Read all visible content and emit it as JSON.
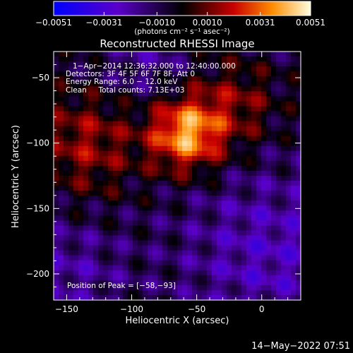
{
  "chart_data": {
    "type": "heatmap",
    "title": "Reconstructed RHESSI Image",
    "xlabel": "Heliocentric X (arcsec)",
    "ylabel": "Heliocentric Y (arcsec)",
    "xlim": [
      -160,
      30
    ],
    "ylim": [
      -220,
      -30
    ],
    "xticks": [
      -150,
      -100,
      -50,
      0
    ],
    "xtick_labels": [
      "−150",
      "−100",
      "−50",
      "0"
    ],
    "yticks": [
      -50,
      -100,
      -150,
      -200
    ],
    "ytick_labels": [
      "−50",
      "−100",
      "−150",
      "−200"
    ],
    "colorbar": {
      "range": [
        -0.0051,
        0.0051
      ],
      "ticks": [
        -0.0051,
        -0.0031,
        -0.001,
        0.001,
        0.0031,
        0.0051
      ],
      "tick_labels": [
        "−0.0051",
        "−0.0031",
        "−0.0010",
        "0.0010",
        "0.0031",
        "0.0051"
      ],
      "unit_label": "(photons cm⁻² s⁻¹ asec⁻²)",
      "colors": [
        "#0000ff",
        "#5a00c8",
        "#000000",
        "#c80000",
        "#ff8c00",
        "#ffffe0"
      ]
    },
    "annotations": {
      "time_range": "1−Apr−2014 12:36:32.000 to 12:40:00.000",
      "detectors": "Detectors: 3F 4F 5F 6F 7F 8F, Att 0",
      "energy_range": "Energy Range: 6.0 − 12.0 keV",
      "clean": "Clean     Total counts: 7.13E+03",
      "peak_position": "Position of Peak = [−58,−93]"
    },
    "peak": {
      "x": -58,
      "y": -93
    },
    "footer_date": "14−May−2022 07:51"
  }
}
